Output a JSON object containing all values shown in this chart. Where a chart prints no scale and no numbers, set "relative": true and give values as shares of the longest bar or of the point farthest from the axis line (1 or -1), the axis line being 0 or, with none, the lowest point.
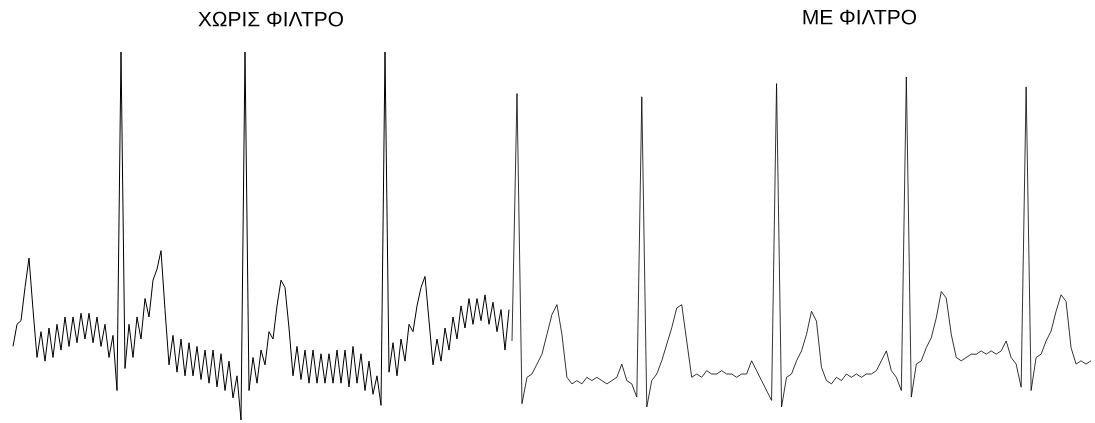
{
  "chart_data": [
    {
      "type": "line",
      "title": "ΧΩΡΙΣ ΦΙΛΤΡΟ",
      "relative": true,
      "color": "#000000",
      "categories": [
        null,
        null,
        null,
        null,
        null,
        null,
        null,
        null,
        null,
        null,
        null,
        null,
        null,
        null,
        null,
        null,
        null,
        null,
        null,
        null,
        null,
        null,
        null,
        null,
        null,
        null,
        null,
        null,
        null,
        null,
        null,
        null,
        null,
        null,
        null,
        null,
        null,
        null,
        null,
        null,
        null,
        null,
        null,
        null,
        null,
        null,
        null,
        null,
        null,
        null,
        null,
        null,
        null,
        null,
        null,
        null,
        null,
        null,
        null,
        null,
        null,
        null,
        null,
        null,
        null,
        null,
        null,
        null,
        null,
        null,
        null,
        null,
        null,
        null,
        null,
        null,
        null,
        null,
        null,
        null,
        null,
        null,
        null,
        null,
        null,
        null,
        null,
        null,
        null,
        null,
        null,
        null,
        null,
        null,
        null,
        null,
        null,
        null,
        null,
        null,
        null,
        null,
        null,
        null,
        null,
        null,
        null,
        null,
        null,
        null,
        null,
        null,
        null,
        null,
        null,
        null,
        null,
        null,
        null,
        null,
        null,
        null,
        null,
        null,
        null
      ],
      "values": [
        0.2,
        0.26,
        0.27,
        0.36,
        0.44,
        0.3,
        0.17,
        0.24,
        0.16,
        0.25,
        0.17,
        0.26,
        0.19,
        0.28,
        0.2,
        0.28,
        0.21,
        0.29,
        0.22,
        0.29,
        0.21,
        0.28,
        0.2,
        0.26,
        0.17,
        0.23,
        0.08,
        1.0,
        0.14,
        0.26,
        0.17,
        0.28,
        0.22,
        0.33,
        0.28,
        0.38,
        0.41,
        0.46,
        0.3,
        0.15,
        0.23,
        0.13,
        0.22,
        0.12,
        0.21,
        0.12,
        0.2,
        0.11,
        0.19,
        0.1,
        0.19,
        0.09,
        0.18,
        0.08,
        0.16,
        0.06,
        0.12,
        0.0,
        1.0,
        0.08,
        0.17,
        0.1,
        0.19,
        0.15,
        0.24,
        0.22,
        0.31,
        0.38,
        0.36,
        0.25,
        0.12,
        0.2,
        0.11,
        0.19,
        0.1,
        0.19,
        0.1,
        0.18,
        0.1,
        0.18,
        0.1,
        0.19,
        0.1,
        0.19,
        0.09,
        0.2,
        0.1,
        0.18,
        0.08,
        0.16,
        0.07,
        0.12,
        0.04,
        1.0,
        0.13,
        0.21,
        0.12,
        0.22,
        0.16,
        0.26,
        0.24,
        0.31,
        0.36,
        0.39,
        0.27,
        0.15,
        0.22,
        0.16,
        0.25,
        0.19,
        0.28,
        0.22,
        0.31,
        0.25,
        0.33,
        0.26,
        0.33,
        0.27,
        0.34,
        0.26,
        0.32,
        0.24,
        0.3,
        0.19,
        0.3
      ]
    },
    {
      "type": "line",
      "title": "ΜΕ ΦΙΛΤΡΟ",
      "relative": true,
      "color": "#000000",
      "categories": [
        null,
        null,
        null,
        null,
        null,
        null,
        null,
        null,
        null,
        null,
        null,
        null,
        null,
        null,
        null,
        null,
        null,
        null,
        null,
        null,
        null,
        null,
        null,
        null,
        null,
        null,
        null,
        null,
        null,
        null,
        null,
        null,
        null,
        null,
        null,
        null,
        null,
        null,
        null,
        null,
        null,
        null,
        null,
        null,
        null,
        null,
        null,
        null,
        null,
        null,
        null,
        null,
        null,
        null,
        null,
        null,
        null,
        null,
        null,
        null,
        null,
        null,
        null,
        null,
        null,
        null,
        null,
        null,
        null,
        null,
        null,
        null,
        null,
        null,
        null,
        null,
        null,
        null,
        null,
        null,
        null,
        null,
        null,
        null,
        null,
        null,
        null,
        null,
        null,
        null,
        null,
        null,
        null,
        null,
        null,
        null,
        null,
        null,
        null,
        null,
        null,
        null,
        null,
        null,
        null,
        null,
        null,
        null,
        null,
        null,
        null,
        null,
        null,
        null,
        null,
        null,
        null
      ],
      "values": [
        0.2,
        0.95,
        0.01,
        0.09,
        0.1,
        0.13,
        0.16,
        0.22,
        0.28,
        0.31,
        0.22,
        0.09,
        0.07,
        0.08,
        0.07,
        0.09,
        0.08,
        0.09,
        0.08,
        0.07,
        0.08,
        0.09,
        0.13,
        0.08,
        0.07,
        0.03,
        0.94,
        0.0,
        0.08,
        0.1,
        0.14,
        0.19,
        0.24,
        0.3,
        0.31,
        0.2,
        0.09,
        0.1,
        0.09,
        0.11,
        0.1,
        0.1,
        0.11,
        0.1,
        0.1,
        0.09,
        0.1,
        0.1,
        0.14,
        0.11,
        0.08,
        0.05,
        0.02,
        0.98,
        0.0,
        0.09,
        0.1,
        0.14,
        0.17,
        0.22,
        0.29,
        0.26,
        0.12,
        0.08,
        0.07,
        0.09,
        0.08,
        0.1,
        0.09,
        0.1,
        0.09,
        0.1,
        0.1,
        0.11,
        0.14,
        0.17,
        0.11,
        0.09,
        0.05,
        1.0,
        0.03,
        0.13,
        0.14,
        0.18,
        0.21,
        0.27,
        0.35,
        0.33,
        0.22,
        0.15,
        0.14,
        0.15,
        0.16,
        0.16,
        0.17,
        0.16,
        0.17,
        0.16,
        0.17,
        0.2,
        0.15,
        0.13,
        0.06,
        0.97,
        0.05,
        0.15,
        0.16,
        0.2,
        0.23,
        0.29,
        0.34,
        0.32,
        0.18,
        0.13,
        0.14,
        0.13,
        0.14
      ]
    }
  ]
}
